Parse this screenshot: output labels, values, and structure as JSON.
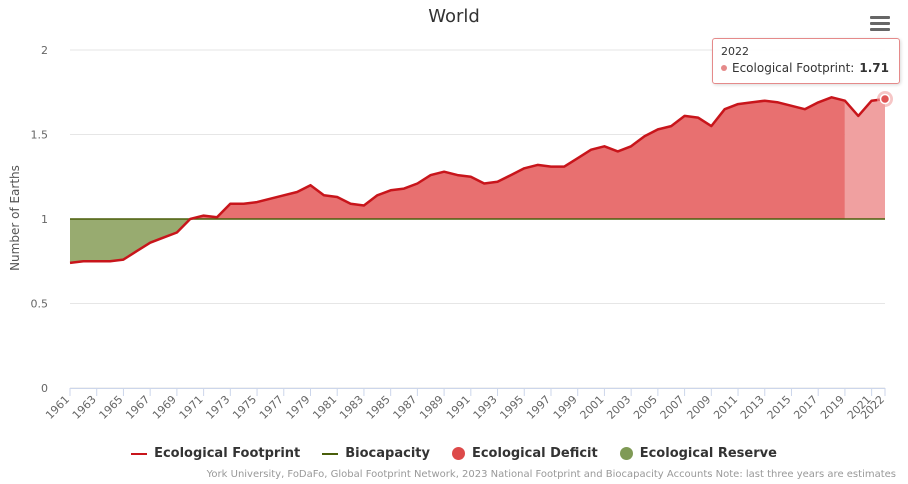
{
  "title": "World",
  "menu": {
    "icon": "hamburger-menu-icon"
  },
  "chart_data": {
    "type": "area",
    "title": "World",
    "ylabel": "Number of Earths",
    "xlabel": "",
    "ylim": [
      0,
      2
    ],
    "yticks": [
      "0",
      "0.5",
      "1",
      "1.5",
      "2"
    ],
    "xticks": [
      "1961",
      "1963",
      "1965",
      "1967",
      "1969",
      "1971",
      "1973",
      "1975",
      "1977",
      "1979",
      "1981",
      "1983",
      "1985",
      "1987",
      "1989",
      "1991",
      "1993",
      "1995",
      "1997",
      "1999",
      "2001",
      "2003",
      "2005",
      "2007",
      "2009",
      "2011",
      "2013",
      "2015",
      "2017",
      "2019",
      "2021",
      "2022"
    ],
    "estimate_from_year": 2019,
    "colors": {
      "footprint_line": "#c8151b",
      "biocapacity_line": "#4a5e0a",
      "deficit_fill": "#e87070",
      "deficit_fill_estimate": "#f0a0a0",
      "reserve_fill": "#98ab70",
      "grid": "#e6e6e6"
    },
    "x": [
      1961,
      1962,
      1963,
      1964,
      1965,
      1966,
      1967,
      1968,
      1969,
      1970,
      1971,
      1972,
      1973,
      1974,
      1975,
      1976,
      1977,
      1978,
      1979,
      1980,
      1981,
      1982,
      1983,
      1984,
      1985,
      1986,
      1987,
      1988,
      1989,
      1990,
      1991,
      1992,
      1993,
      1994,
      1995,
      1996,
      1997,
      1998,
      1999,
      2000,
      2001,
      2002,
      2003,
      2004,
      2005,
      2006,
      2007,
      2008,
      2009,
      2010,
      2011,
      2012,
      2013,
      2014,
      2015,
      2016,
      2017,
      2018,
      2019,
      2020,
      2021,
      2022
    ],
    "series": [
      {
        "name": "Ecological Footprint",
        "values": [
          0.74,
          0.75,
          0.75,
          0.75,
          0.76,
          0.81,
          0.86,
          0.89,
          0.92,
          1.0,
          1.02,
          1.01,
          1.09,
          1.09,
          1.1,
          1.12,
          1.14,
          1.16,
          1.2,
          1.14,
          1.13,
          1.09,
          1.08,
          1.14,
          1.17,
          1.18,
          1.21,
          1.26,
          1.28,
          1.26,
          1.25,
          1.21,
          1.22,
          1.26,
          1.3,
          1.32,
          1.31,
          1.31,
          1.36,
          1.41,
          1.43,
          1.4,
          1.43,
          1.49,
          1.53,
          1.55,
          1.61,
          1.6,
          1.55,
          1.65,
          1.68,
          1.69,
          1.7,
          1.69,
          1.67,
          1.65,
          1.69,
          1.72,
          1.7,
          1.61,
          1.7,
          1.71
        ]
      },
      {
        "name": "Biocapacity",
        "values": [
          1,
          1,
          1,
          1,
          1,
          1,
          1,
          1,
          1,
          1,
          1,
          1,
          1,
          1,
          1,
          1,
          1,
          1,
          1,
          1,
          1,
          1,
          1,
          1,
          1,
          1,
          1,
          1,
          1,
          1,
          1,
          1,
          1,
          1,
          1,
          1,
          1,
          1,
          1,
          1,
          1,
          1,
          1,
          1,
          1,
          1,
          1,
          1,
          1,
          1,
          1,
          1,
          1,
          1,
          1,
          1,
          1,
          1,
          1,
          1,
          1,
          1
        ]
      }
    ],
    "legend": [
      "Ecological Footprint",
      "Biocapacity",
      "Ecological Deficit",
      "Ecological Reserve"
    ],
    "legend_position": "bottom"
  },
  "tooltip": {
    "year": "2022",
    "series": "Ecological Footprint:",
    "value": "1.71"
  },
  "credits": "York University, FoDaFo, Global Footprint Network, 2023 National Footprint and Biocapacity Accounts Note: last three years are estimates"
}
